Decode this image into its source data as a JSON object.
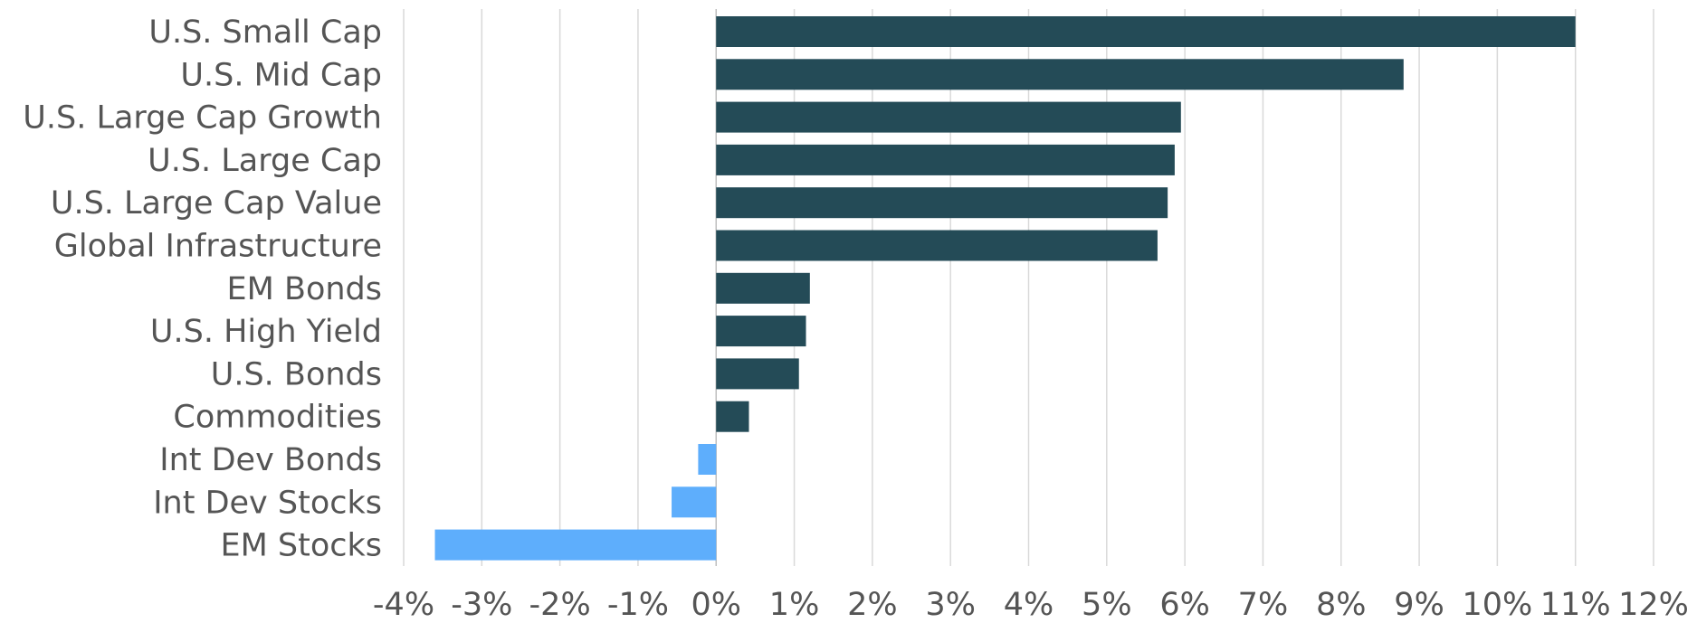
{
  "chart_data": {
    "type": "bar",
    "orientation": "horizontal",
    "title": "",
    "xlabel": "",
    "ylabel": "",
    "xlim": [
      -4,
      12
    ],
    "grid": "vertical",
    "legend": "none",
    "value_unit": "%",
    "colors": {
      "positive": "#244b57",
      "negative": "#5eaefc"
    },
    "categories": [
      "U.S. Small Cap",
      "U.S. Mid Cap",
      "U.S. Large Cap Growth",
      "U.S. Large Cap",
      "U.S. Large Cap Value",
      "Global Infrastructure",
      "EM Bonds",
      "U.S. High Yield",
      "U.S. Bonds",
      "Commodities",
      "Int Dev Bonds",
      "Int Dev Stocks",
      "EM Stocks"
    ],
    "values": [
      11.0,
      8.8,
      5.95,
      5.87,
      5.78,
      5.65,
      1.2,
      1.15,
      1.06,
      0.42,
      -0.23,
      -0.57,
      -3.6
    ],
    "tick_values": [
      -4,
      -3,
      -2,
      -1,
      0,
      1,
      2,
      3,
      4,
      5,
      6,
      7,
      8,
      9,
      10,
      11,
      12
    ],
    "tick_labels": [
      "-4%",
      "-3%",
      "-2%",
      "-1%",
      "0%",
      "1%",
      "2%",
      "3%",
      "4%",
      "5%",
      "6%",
      "7%",
      "8%",
      "9%",
      "10%",
      "11%",
      "12%"
    ]
  }
}
